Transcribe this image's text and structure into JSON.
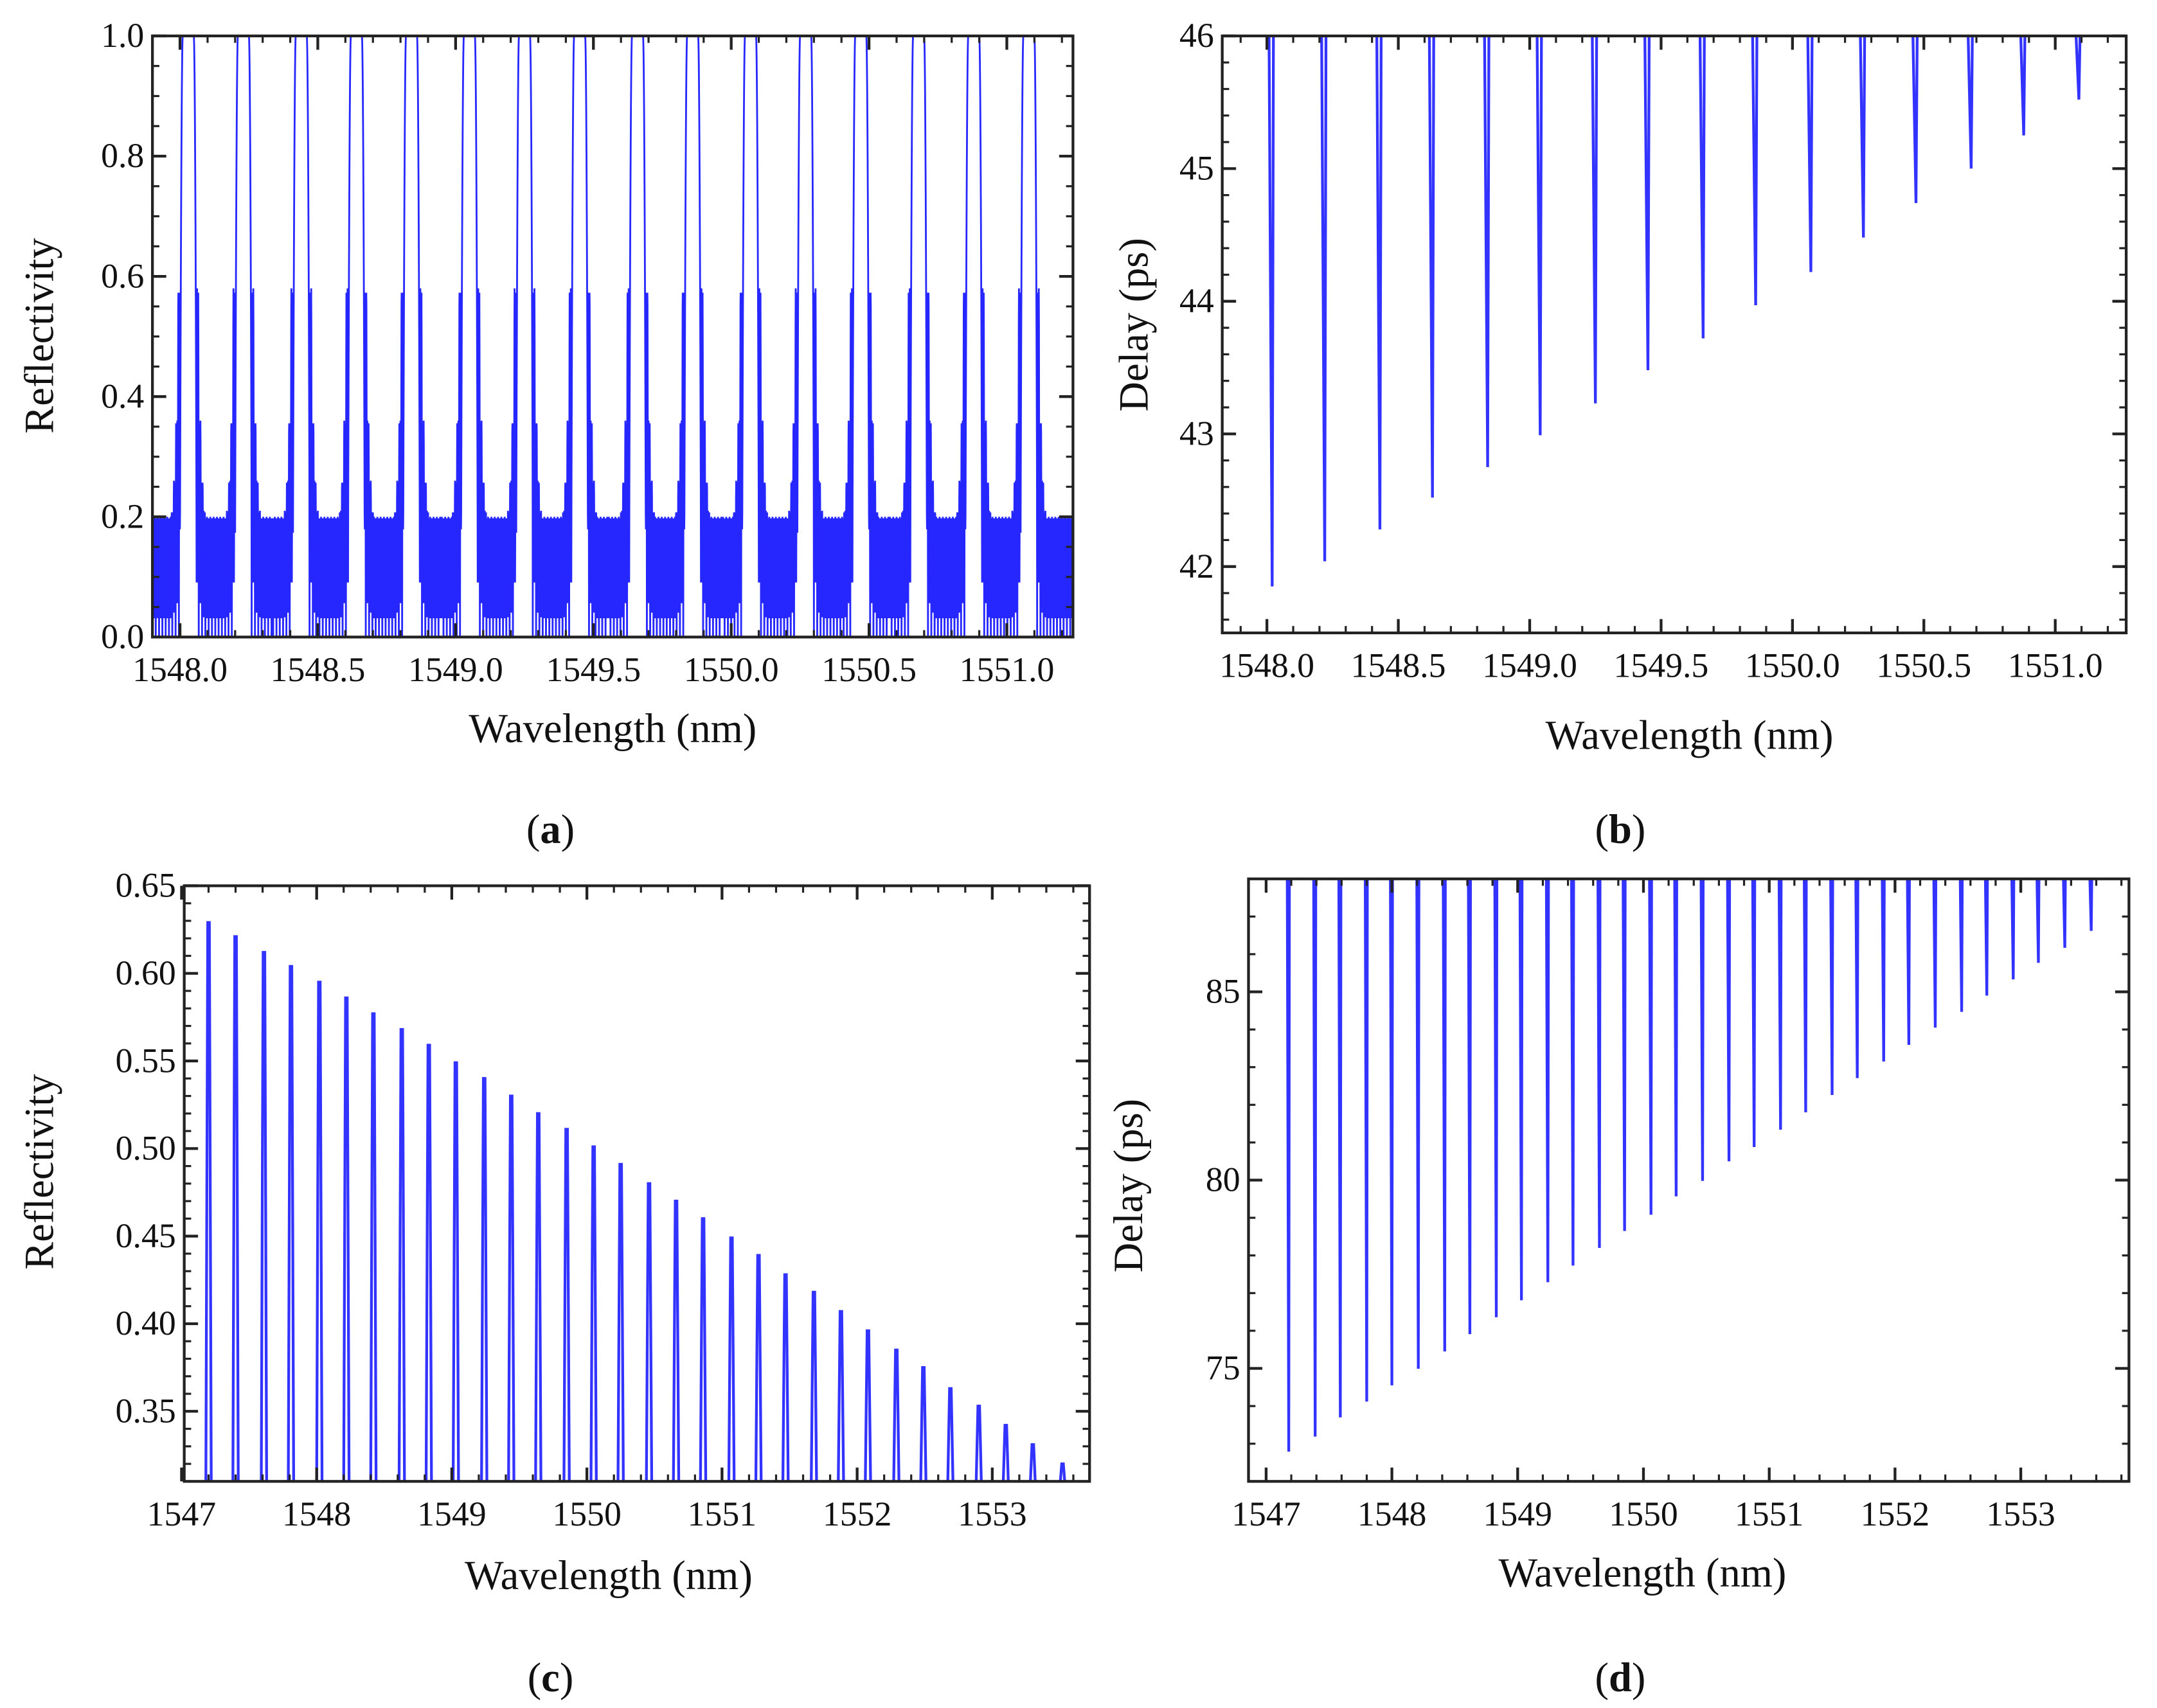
{
  "line_color": "#0000ff",
  "chart_data": [
    {
      "panel_label": "a",
      "type": "line",
      "xlabel": "Wavelength (nm)",
      "ylabel": "Reflectivity",
      "xlim": [
        1547.9,
        1551.24
      ],
      "ylim": [
        0,
        1.0
      ],
      "x_ticks": [
        1548.0,
        1548.5,
        1549.0,
        1549.5,
        1550.0,
        1550.5,
        1551.0
      ],
      "x_tick_labels": [
        "1548.0",
        "1548.5",
        "1549.0",
        "1549.5",
        "1550.0",
        "1550.5",
        "1551.0"
      ],
      "y_ticks": [
        0,
        0.2,
        0.4,
        0.6,
        0.8,
        1.0
      ],
      "y_tick_labels": [
        "0.0",
        "0.2",
        "0.4",
        "0.6",
        "0.8",
        "1.0"
      ],
      "channel_centers": [
        1548.03,
        1548.23,
        1548.44,
        1548.64,
        1548.84,
        1549.05,
        1549.25,
        1549.45,
        1549.66,
        1549.86,
        1550.07,
        1550.27,
        1550.47,
        1550.68,
        1550.88,
        1551.08
      ],
      "peak_reflectivity": 1.0,
      "sidelobe_levels": [
        0.58,
        0.36,
        0.26,
        0.21,
        0.2
      ]
    },
    {
      "panel_label": "b",
      "type": "line",
      "xlabel": "Wavelength (nm)",
      "ylabel": "Delay (ps)",
      "xlim": [
        1547.83,
        1551.27
      ],
      "ylim": [
        41.5,
        46
      ],
      "x_ticks": [
        1548.0,
        1548.5,
        1549.0,
        1549.5,
        1550.0,
        1550.5,
        1551.0
      ],
      "x_tick_labels": [
        "1548.0",
        "1548.5",
        "1549.0",
        "1549.5",
        "1550.0",
        "1550.5",
        "1551.0"
      ],
      "y_ticks": [
        42,
        43,
        44,
        45,
        46
      ],
      "y_tick_labels": [
        "42",
        "43",
        "44",
        "45",
        "46"
      ],
      "dip_wavelengths": [
        1548.02,
        1548.22,
        1548.43,
        1548.63,
        1548.84,
        1549.04,
        1549.25,
        1549.45,
        1549.66,
        1549.86,
        1550.07,
        1550.27,
        1550.47,
        1550.68,
        1550.88,
        1551.09
      ],
      "dip_minima": [
        41.85,
        42.04,
        42.28,
        42.52,
        42.75,
        42.99,
        43.23,
        43.48,
        43.72,
        43.97,
        44.22,
        44.48,
        44.74,
        45.0,
        45.25,
        45.52
      ]
    },
    {
      "panel_label": "c",
      "type": "line",
      "xlabel": "Wavelength (nm)",
      "ylabel": "Reflectivity",
      "xlim": [
        1547.02,
        1553.72
      ],
      "ylim": [
        0.31,
        0.65
      ],
      "x_ticks": [
        1547,
        1548,
        1549,
        1550,
        1551,
        1552,
        1553
      ],
      "x_tick_labels": [
        "1547",
        "1548",
        "1549",
        "1550",
        "1551",
        "1552",
        "1553"
      ],
      "y_ticks": [
        0.35,
        0.4,
        0.45,
        0.5,
        0.55,
        0.6,
        0.65
      ],
      "y_tick_labels": [
        "0.35",
        "0.40",
        "0.45",
        "0.50",
        "0.55",
        "0.60",
        "0.65"
      ],
      "peak_wavelengths": [
        1547.2,
        1547.4,
        1547.61,
        1547.81,
        1548.02,
        1548.22,
        1548.42,
        1548.63,
        1548.83,
        1549.03,
        1549.24,
        1549.44,
        1549.64,
        1549.85,
        1550.05,
        1550.25,
        1550.46,
        1550.66,
        1550.86,
        1551.07,
        1551.27,
        1551.47,
        1551.68,
        1551.88,
        1552.08,
        1552.29,
        1552.49,
        1552.69,
        1552.9,
        1553.1,
        1553.3,
        1553.52
      ],
      "peak_values": [
        0.629,
        0.621,
        0.612,
        0.604,
        0.595,
        0.586,
        0.577,
        0.568,
        0.559,
        0.549,
        0.54,
        0.53,
        0.52,
        0.511,
        0.501,
        0.491,
        0.48,
        0.47,
        0.46,
        0.449,
        0.439,
        0.428,
        0.418,
        0.407,
        0.396,
        0.385,
        0.375,
        0.363,
        0.353,
        0.342,
        0.331,
        0.32
      ]
    },
    {
      "panel_label": "d",
      "type": "line",
      "xlabel": "Wavelength (nm)",
      "ylabel": "Delay (ps)",
      "xlim": [
        1546.86,
        1553.86
      ],
      "ylim": [
        72,
        88
      ],
      "x_ticks": [
        1547,
        1548,
        1549,
        1550,
        1551,
        1552,
        1553
      ],
      "x_tick_labels": [
        "1547",
        "1548",
        "1549",
        "1550",
        "1551",
        "1552",
        "1553"
      ],
      "y_ticks": [
        75,
        80,
        85
      ],
      "y_tick_labels": [
        "75",
        "80",
        "85"
      ],
      "dip_wavelengths": [
        1547.18,
        1547.39,
        1547.59,
        1547.8,
        1548.0,
        1548.21,
        1548.42,
        1548.62,
        1548.83,
        1549.03,
        1549.24,
        1549.44,
        1549.65,
        1549.85,
        1550.06,
        1550.26,
        1550.47,
        1550.68,
        1550.88,
        1551.09,
        1551.29,
        1551.5,
        1551.7,
        1551.91,
        1552.11,
        1552.32,
        1552.53,
        1552.73,
        1552.94,
        1553.14,
        1553.35,
        1553.56
      ],
      "dip_minima": [
        72.79,
        73.19,
        73.7,
        74.12,
        74.55,
        74.99,
        75.45,
        75.91,
        76.36,
        76.81,
        77.29,
        77.73,
        78.2,
        78.65,
        79.08,
        79.57,
        79.98,
        80.5,
        80.88,
        81.34,
        81.8,
        82.26,
        82.71,
        83.15,
        83.59,
        84.05,
        84.47,
        84.9,
        85.33,
        85.77,
        86.17,
        86.62
      ]
    }
  ]
}
